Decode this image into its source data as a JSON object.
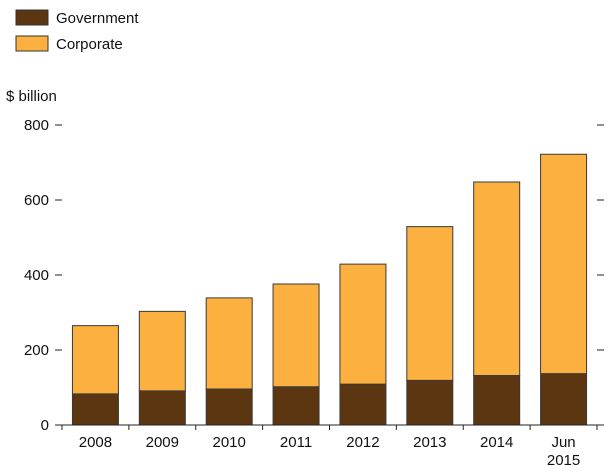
{
  "chart_data": {
    "type": "bar",
    "stacked": true,
    "categories": [
      "2008",
      "2009",
      "2010",
      "2011",
      "2012",
      "2013",
      "2014",
      "Jun 2015"
    ],
    "category_lines": [
      [
        "2008"
      ],
      [
        "2009"
      ],
      [
        "2010"
      ],
      [
        "2011"
      ],
      [
        "2012"
      ],
      [
        "2013"
      ],
      [
        "2014"
      ],
      [
        "Jun",
        "2015"
      ]
    ],
    "series": [
      {
        "name": "Government",
        "color": "#5C3511",
        "values": [
          83,
          91,
          96,
          102,
          109,
          119,
          132,
          137
        ]
      },
      {
        "name": "Corporate",
        "color": "#FBB040",
        "values": [
          182,
          212,
          243,
          274,
          320,
          410,
          516,
          585
        ]
      }
    ],
    "ylabel": "$ billion",
    "xlabel": "",
    "ylim": [
      0,
      800
    ],
    "yticks": [
      0,
      200,
      400,
      600,
      800
    ],
    "legend_position": "top-left",
    "grid": false
  }
}
